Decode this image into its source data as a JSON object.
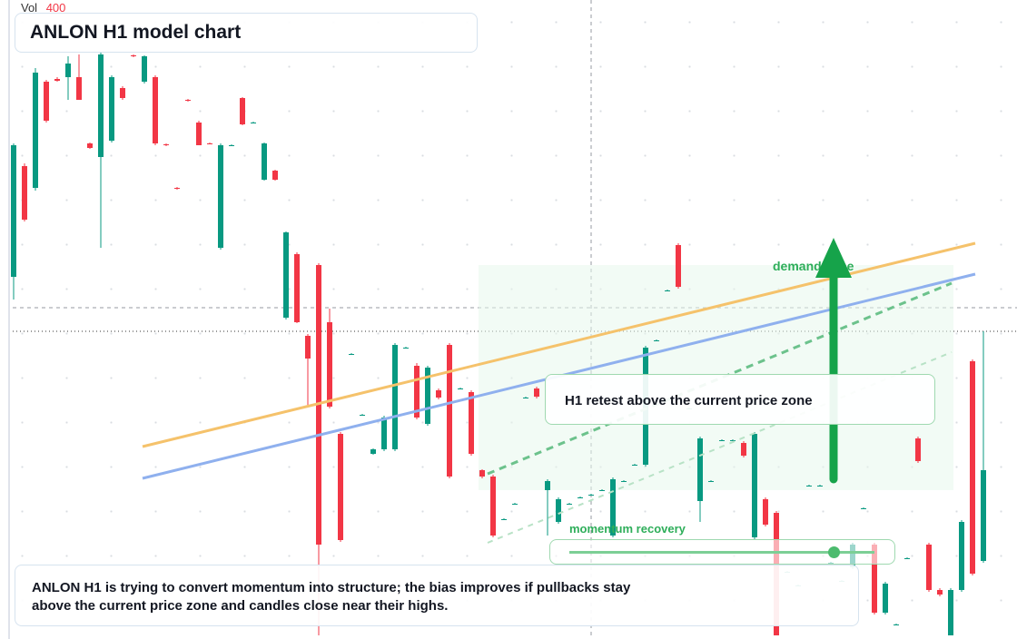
{
  "chart_data": {
    "type": "candlestick",
    "title": "ANLON H1 model chart",
    "volume_label": "Vol",
    "volume_value": 400,
    "annotations": [
      "demand zone",
      "H1 retest above the current price zone",
      "momentum recovery"
    ],
    "caption": "ANLON H1 is trying to convert momentum into structure; the bias improves if pullbacks stay above the current price zone and candles close near their highs.",
    "up_color": "#089981",
    "down_color": "#f23645",
    "ylim": [
      0,
      70
    ],
    "open": [
      39.5,
      51.7,
      49.3,
      61,
      61.3,
      61.5,
      61.5,
      54.2,
      52.7,
      54.5,
      60.3,
      63.9,
      61,
      61.5,
      54.1,
      49.3,
      59,
      56.5,
      54.2,
      42.7,
      54,
      59.2,
      56.5,
      50.2,
      51.2,
      35,
      42,
      33,
      40.8,
      34.5,
      22.2,
      31,
      24.3,
      20,
      20.5,
      20.5,
      31.7,
      29.7,
      23.3,
      27,
      32,
      27.2,
      26.8,
      18.2,
      17.5,
      12.8,
      14.5,
      26.2,
      27.2,
      16,
      12.5,
      14.5,
      15.2,
      15.5,
      16,
      11,
      17,
      18.8,
      18.8,
      32.5,
      38,
      43,
      25,
      14.8,
      17,
      21.5,
      21.5,
      21.2,
      10.8,
      15,
      13.5,
      7,
      5.5,
      16.5,
      16.5,
      8,
      6,
      7.5,
      14,
      10,
      2.5,
      1.2,
      8.5,
      21.7,
      10,
      5,
      0,
      5,
      30.2,
      8.2
    ],
    "high": [
      54.2,
      52,
      62.5,
      61.2,
      61.5,
      63.8,
      64,
      54.3,
      64.2,
      61.7,
      60.5,
      64,
      63.9,
      61.7,
      54.2,
      49.4,
      59.1,
      56.7,
      54.3,
      54.2,
      54.1,
      59.3,
      56.6,
      54.3,
      51.3,
      44.5,
      42.2,
      33.2,
      41,
      36,
      22.4,
      31.1,
      24.4,
      20.6,
      24.2,
      32.2,
      31.8,
      30,
      29.7,
      27.2,
      32.2,
      27.3,
      27,
      18.3,
      17.7,
      12.9,
      14.6,
      26.3,
      27.4,
      17.2,
      15.2,
      14.6,
      15.3,
      15.6,
      16.1,
      17.4,
      17.1,
      18.9,
      31.9,
      32.6,
      38.1,
      43.2,
      25.1,
      21.9,
      17.1,
      21.6,
      21.6,
      21.4,
      22.4,
      15.2,
      13.7,
      7.1,
      5.6,
      16.6,
      16.6,
      8.1,
      6.1,
      10.2,
      14.1,
      10.2,
      5.9,
      1.3,
      8.6,
      21.9,
      10.2,
      5.2,
      5.2,
      12.7,
      30.4,
      33.5
    ],
    "low": [
      37,
      45.6,
      49,
      56.5,
      61,
      59,
      59,
      53.6,
      42.7,
      54.3,
      59,
      63.7,
      60.8,
      54,
      53.9,
      49.1,
      58.8,
      54,
      54.1,
      42.5,
      53.9,
      56.2,
      56.4,
      50.1,
      50.1,
      34.8,
      34.4,
      25.3,
      0,
      25,
      10.3,
      30.9,
      24.2,
      19.9,
      20.3,
      20.3,
      31.6,
      23.8,
      23.1,
      26,
      17.3,
      27.1,
      19.8,
      17.3,
      10.8,
      12.7,
      14.4,
      26.1,
      26.1,
      11,
      12.3,
      14.4,
      15.1,
      15.4,
      15.9,
      10.8,
      16.9,
      18.7,
      18.6,
      32.4,
      37.9,
      38.2,
      24.9,
      12.5,
      16.9,
      21.4,
      21.4,
      19.6,
      10.6,
      12,
      0,
      6.9,
      5.4,
      16.4,
      16.4,
      7.9,
      5.9,
      7.3,
      13.9,
      2.3,
      2.3,
      1.1,
      8.4,
      19,
      4.8,
      4.3,
      0,
      4.8,
      6.6,
      8
    ],
    "close": [
      54,
      45.8,
      62,
      56.7,
      61.1,
      63,
      59,
      53.7,
      64,
      61.5,
      59.2,
      63.8,
      63.8,
      54.2,
      54,
      49.2,
      58.9,
      54,
      54.1,
      54,
      54,
      56.3,
      56.5,
      54.2,
      50.2,
      44.4,
      34.5,
      30.5,
      10,
      25.2,
      10.5,
      31,
      24.3,
      20.5,
      24,
      32,
      31.7,
      24,
      29.5,
      26.2,
      17.5,
      27.2,
      20,
      17.5,
      11,
      12.8,
      14.5,
      26.2,
      26.3,
      17,
      15,
      14.5,
      15.2,
      15.5,
      16,
      17.2,
      17,
      18.8,
      31.7,
      32.5,
      38,
      38.4,
      25,
      21.7,
      17,
      21.5,
      21.5,
      19.8,
      22.2,
      12.2,
      0,
      7,
      5.5,
      16.5,
      16.5,
      8,
      6,
      10,
      14,
      2.5,
      5.7,
      1.2,
      8.5,
      19.2,
      5,
      4.5,
      5,
      12.5,
      6.8,
      18.2
    ]
  }
}
